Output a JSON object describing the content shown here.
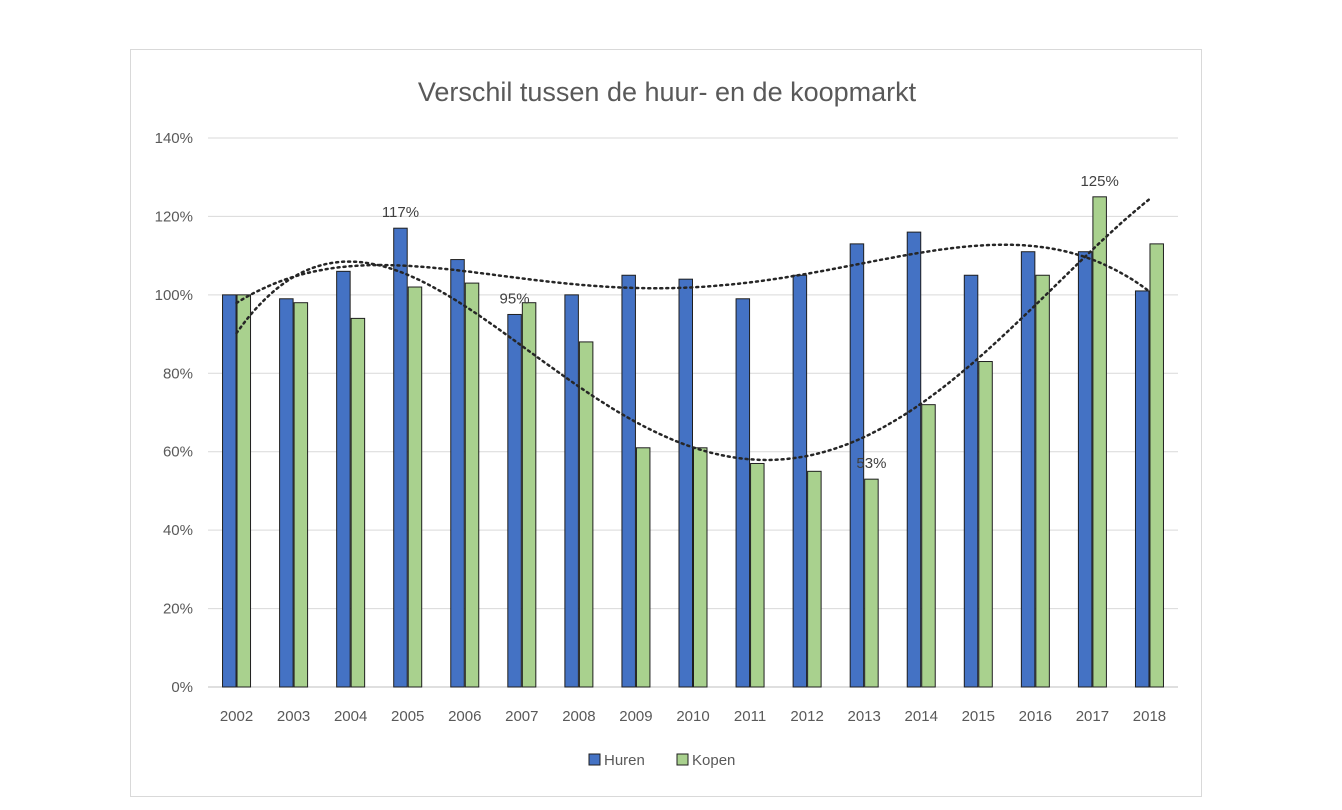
{
  "chart_data": {
    "type": "bar",
    "title": "Verschil tussen de huur- en de koopmarkt",
    "xlabel": "",
    "ylabel": "",
    "categories": [
      "2002",
      "2003",
      "2004",
      "2005",
      "2006",
      "2007",
      "2008",
      "2009",
      "2010",
      "2011",
      "2012",
      "2013",
      "2014",
      "2015",
      "2016",
      "2017",
      "2018"
    ],
    "series": [
      {
        "name": "Huren",
        "color": "#4472c4",
        "values": [
          100,
          99,
          106,
          117,
          109,
          95,
          100,
          105,
          104,
          99,
          105,
          113,
          116,
          105,
          111,
          111,
          101
        ],
        "trendline": "polynomial"
      },
      {
        "name": "Kopen",
        "color": "#a9d18e",
        "values": [
          100,
          98,
          94,
          102,
          103,
          98,
          88,
          61,
          61,
          57,
          55,
          53,
          72,
          83,
          105,
          125,
          113
        ],
        "trendline": "polynomial"
      }
    ],
    "data_labels": [
      {
        "series": "Huren",
        "category": "2005",
        "text": "117%"
      },
      {
        "series": "Huren",
        "category": "2007",
        "text": "95%"
      },
      {
        "series": "Kopen",
        "category": "2013",
        "text": "53%"
      },
      {
        "series": "Kopen",
        "category": "2017",
        "text": "125%"
      }
    ],
    "yticks": [
      "0%",
      "20%",
      "40%",
      "60%",
      "80%",
      "100%",
      "120%",
      "140%"
    ],
    "ylim": [
      0,
      140
    ],
    "grid": true,
    "legend_position": "bottom"
  }
}
